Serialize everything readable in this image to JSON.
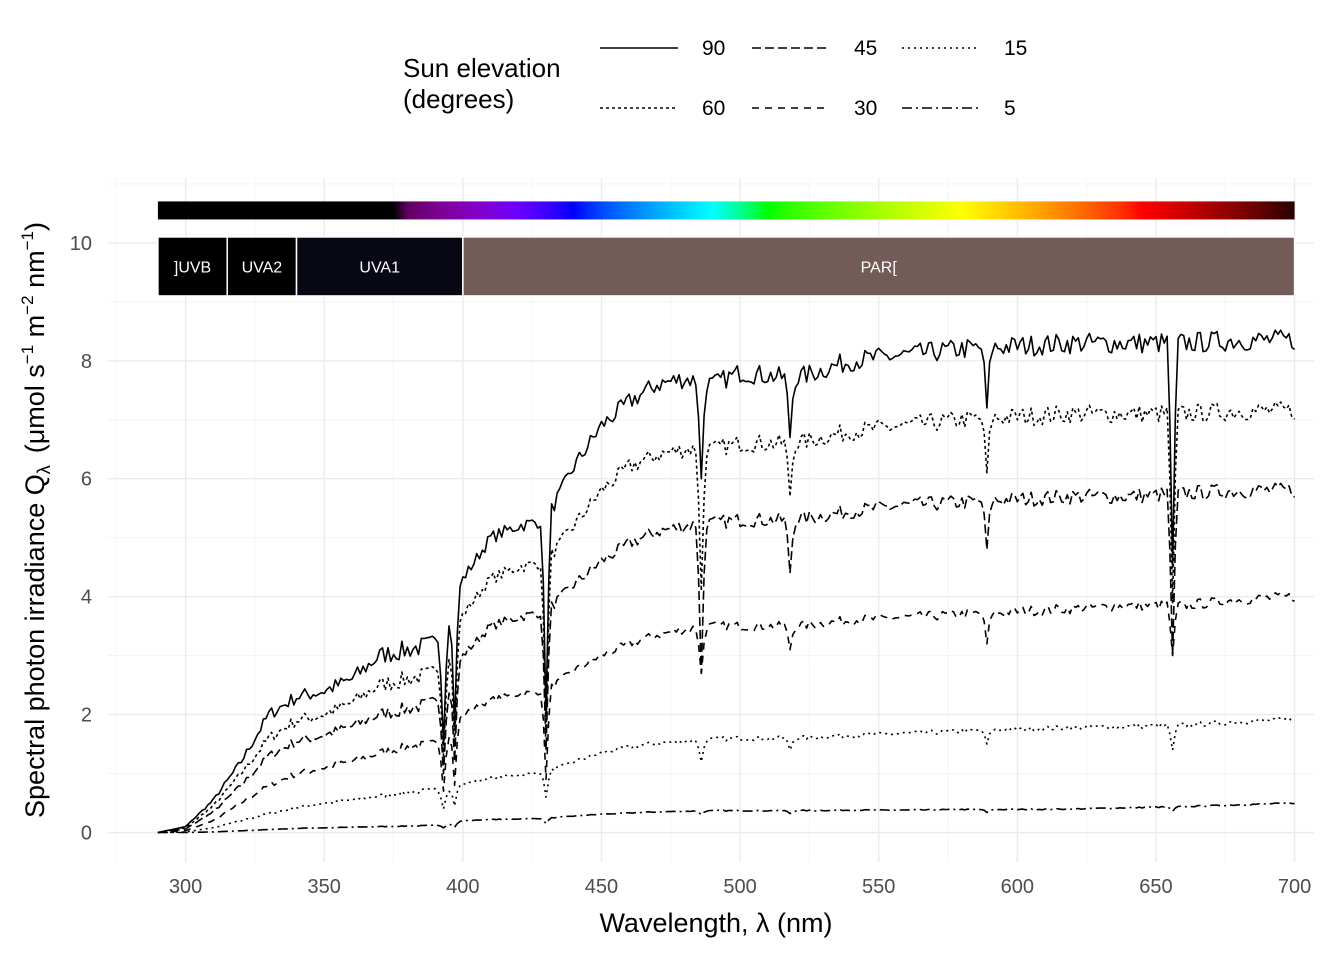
{
  "chart_data": {
    "type": "line",
    "xlabel": "Wavelength, λ (nm)",
    "ylabel": "Spectral photon irradiance Q",
    "ylabel_sub": "λ",
    "ylabel_units_prefix": "(μmol s",
    "ylabel_units_m": " m",
    "ylabel_units_nm": " nm",
    "ylabel_units_suffix": ")",
    "ylabel_exp1": "−1",
    "ylabel_exp2": "−2",
    "ylabel_exp3": "−1",
    "xlim": [
      272,
      707
    ],
    "ylim": [
      -0.5,
      11.1
    ],
    "x_ticks": [
      300,
      350,
      400,
      450,
      500,
      550,
      600,
      650,
      700
    ],
    "y_ticks": [
      0,
      2,
      4,
      6,
      8,
      10
    ],
    "grid": true,
    "legend": {
      "title_line1": "Sun elevation",
      "title_line2": "(degrees)",
      "position": "top",
      "entries": [
        "90",
        "45",
        "15",
        "60",
        "30",
        "5"
      ]
    },
    "wavebands": [
      {
        "label": "]UVB",
        "from": 290,
        "to": 315,
        "color": "#000000"
      },
      {
        "label": "UVA2",
        "from": 315,
        "to": 340,
        "color": "#000000"
      },
      {
        "label": "UVA1",
        "from": 340,
        "to": 400,
        "color": "#080814"
      },
      {
        "label": "PAR[",
        "from": 400,
        "to": 700,
        "color": "#735B57"
      }
    ],
    "color_bar": {
      "from": 290,
      "to": 700
    },
    "series": [
      {
        "name": "90",
        "dash": "none",
        "points": [
          [
            290,
            0
          ],
          [
            300,
            0.1
          ],
          [
            310,
            0.55
          ],
          [
            320,
            1.2
          ],
          [
            330,
            2.0
          ],
          [
            340,
            2.3
          ],
          [
            350,
            2.4
          ],
          [
            360,
            2.6
          ],
          [
            370,
            3.0
          ],
          [
            380,
            3.1
          ],
          [
            390,
            3.2
          ],
          [
            395,
            3.7
          ],
          [
            400,
            4.3
          ],
          [
            410,
            5.0
          ],
          [
            420,
            5.2
          ],
          [
            430,
            5.3
          ],
          [
            440,
            6.2
          ],
          [
            450,
            6.9
          ],
          [
            460,
            7.3
          ],
          [
            470,
            7.6
          ],
          [
            480,
            7.7
          ],
          [
            490,
            7.6
          ],
          [
            500,
            7.8
          ],
          [
            520,
            7.7
          ],
          [
            540,
            8.0
          ],
          [
            560,
            8.1
          ],
          [
            580,
            8.2
          ],
          [
            600,
            8.25
          ],
          [
            620,
            8.3
          ],
          [
            640,
            8.3
          ],
          [
            660,
            8.3
          ],
          [
            680,
            8.35
          ],
          [
            700,
            8.35
          ]
        ],
        "dips": [
          [
            393,
            1.5
          ],
          [
            397,
            1.8
          ],
          [
            430,
            2.0
          ],
          [
            486,
            6.0
          ],
          [
            518,
            6.7
          ],
          [
            589,
            7.2
          ],
          [
            656,
            4.5
          ]
        ]
      },
      {
        "name": "60",
        "dash": "3 3",
        "points": [
          [
            290,
            0
          ],
          [
            300,
            0.08
          ],
          [
            310,
            0.45
          ],
          [
            320,
            1.0
          ],
          [
            330,
            1.6
          ],
          [
            340,
            1.9
          ],
          [
            350,
            2.0
          ],
          [
            360,
            2.2
          ],
          [
            370,
            2.5
          ],
          [
            380,
            2.6
          ],
          [
            390,
            2.7
          ],
          [
            395,
            3.1
          ],
          [
            400,
            3.7
          ],
          [
            410,
            4.3
          ],
          [
            420,
            4.5
          ],
          [
            430,
            4.6
          ],
          [
            440,
            5.2
          ],
          [
            450,
            5.8
          ],
          [
            460,
            6.2
          ],
          [
            470,
            6.4
          ],
          [
            480,
            6.5
          ],
          [
            490,
            6.5
          ],
          [
            500,
            6.6
          ],
          [
            520,
            6.6
          ],
          [
            540,
            6.8
          ],
          [
            560,
            6.9
          ],
          [
            580,
            7.0
          ],
          [
            600,
            7.05
          ],
          [
            620,
            7.1
          ],
          [
            640,
            7.1
          ],
          [
            660,
            7.1
          ],
          [
            680,
            7.15
          ],
          [
            700,
            7.15
          ]
        ],
        "dips": [
          [
            393,
            1.3
          ],
          [
            397,
            1.5
          ],
          [
            430,
            1.7
          ],
          [
            486,
            4.1
          ],
          [
            518,
            5.7
          ],
          [
            589,
            6.1
          ],
          [
            656,
            3.9
          ]
        ]
      },
      {
        "name": "45",
        "dash": "9 4",
        "points": [
          [
            290,
            0
          ],
          [
            300,
            0.06
          ],
          [
            310,
            0.35
          ],
          [
            320,
            0.8
          ],
          [
            330,
            1.3
          ],
          [
            340,
            1.55
          ],
          [
            350,
            1.65
          ],
          [
            360,
            1.8
          ],
          [
            370,
            2.0
          ],
          [
            380,
            2.1
          ],
          [
            390,
            2.2
          ],
          [
            395,
            2.5
          ],
          [
            400,
            3.0
          ],
          [
            410,
            3.5
          ],
          [
            420,
            3.65
          ],
          [
            430,
            3.75
          ],
          [
            440,
            4.2
          ],
          [
            450,
            4.6
          ],
          [
            460,
            4.9
          ],
          [
            470,
            5.1
          ],
          [
            480,
            5.2
          ],
          [
            490,
            5.25
          ],
          [
            500,
            5.3
          ],
          [
            520,
            5.3
          ],
          [
            540,
            5.45
          ],
          [
            560,
            5.55
          ],
          [
            580,
            5.6
          ],
          [
            600,
            5.65
          ],
          [
            620,
            5.7
          ],
          [
            640,
            5.7
          ],
          [
            660,
            5.75
          ],
          [
            680,
            5.8
          ],
          [
            700,
            5.8
          ]
        ],
        "dips": [
          [
            393,
            1.0
          ],
          [
            397,
            1.2
          ],
          [
            430,
            1.4
          ],
          [
            486,
            2.7
          ],
          [
            518,
            4.4
          ],
          [
            589,
            4.8
          ],
          [
            656,
            3.0
          ]
        ]
      },
      {
        "name": "30",
        "dash": "7 6",
        "points": [
          [
            290,
            0
          ],
          [
            300,
            0.03
          ],
          [
            310,
            0.2
          ],
          [
            320,
            0.5
          ],
          [
            330,
            0.8
          ],
          [
            340,
            1.0
          ],
          [
            350,
            1.1
          ],
          [
            360,
            1.2
          ],
          [
            370,
            1.35
          ],
          [
            380,
            1.45
          ],
          [
            390,
            1.5
          ],
          [
            395,
            1.7
          ],
          [
            400,
            2.0
          ],
          [
            410,
            2.25
          ],
          [
            420,
            2.35
          ],
          [
            430,
            2.4
          ],
          [
            440,
            2.75
          ],
          [
            450,
            3.0
          ],
          [
            460,
            3.2
          ],
          [
            470,
            3.35
          ],
          [
            480,
            3.45
          ],
          [
            490,
            3.5
          ],
          [
            500,
            3.5
          ],
          [
            520,
            3.5
          ],
          [
            540,
            3.6
          ],
          [
            560,
            3.65
          ],
          [
            580,
            3.7
          ],
          [
            600,
            3.75
          ],
          [
            620,
            3.8
          ],
          [
            640,
            3.85
          ],
          [
            660,
            3.85
          ],
          [
            680,
            3.95
          ],
          [
            700,
            4.0
          ]
        ],
        "dips": [
          [
            393,
            0.7
          ],
          [
            397,
            0.8
          ],
          [
            430,
            0.9
          ],
          [
            486,
            2.7
          ],
          [
            518,
            3.1
          ],
          [
            589,
            3.2
          ],
          [
            656,
            3.0
          ]
        ]
      },
      {
        "name": "15",
        "dash": "2 4",
        "points": [
          [
            290,
            0
          ],
          [
            300,
            0.01
          ],
          [
            310,
            0.08
          ],
          [
            320,
            0.2
          ],
          [
            330,
            0.32
          ],
          [
            340,
            0.42
          ],
          [
            350,
            0.5
          ],
          [
            360,
            0.55
          ],
          [
            370,
            0.62
          ],
          [
            380,
            0.68
          ],
          [
            390,
            0.72
          ],
          [
            395,
            0.74
          ],
          [
            400,
            0.82
          ],
          [
            410,
            0.93
          ],
          [
            420,
            0.98
          ],
          [
            430,
            1.02
          ],
          [
            440,
            1.2
          ],
          [
            450,
            1.35
          ],
          [
            460,
            1.45
          ],
          [
            470,
            1.52
          ],
          [
            480,
            1.55
          ],
          [
            490,
            1.58
          ],
          [
            500,
            1.6
          ],
          [
            520,
            1.6
          ],
          [
            540,
            1.65
          ],
          [
            560,
            1.68
          ],
          [
            580,
            1.72
          ],
          [
            600,
            1.75
          ],
          [
            620,
            1.78
          ],
          [
            640,
            1.8
          ],
          [
            660,
            1.82
          ],
          [
            680,
            1.88
          ],
          [
            700,
            1.92
          ]
        ],
        "dips": [
          [
            393,
            0.4
          ],
          [
            397,
            0.45
          ],
          [
            430,
            0.6
          ],
          [
            486,
            1.2
          ],
          [
            518,
            1.4
          ],
          [
            589,
            1.5
          ],
          [
            656,
            1.4
          ]
        ]
      },
      {
        "name": "5",
        "dash": "10 4 2 4",
        "points": [
          [
            290,
            0
          ],
          [
            300,
            0.0
          ],
          [
            310,
            0.01
          ],
          [
            320,
            0.03
          ],
          [
            330,
            0.05
          ],
          [
            340,
            0.07
          ],
          [
            350,
            0.08
          ],
          [
            360,
            0.09
          ],
          [
            370,
            0.1
          ],
          [
            380,
            0.11
          ],
          [
            390,
            0.12
          ],
          [
            395,
            0.14
          ],
          [
            400,
            0.2
          ],
          [
            410,
            0.22
          ],
          [
            420,
            0.23
          ],
          [
            430,
            0.24
          ],
          [
            440,
            0.28
          ],
          [
            450,
            0.31
          ],
          [
            460,
            0.33
          ],
          [
            470,
            0.35
          ],
          [
            480,
            0.36
          ],
          [
            490,
            0.37
          ],
          [
            500,
            0.37
          ],
          [
            520,
            0.37
          ],
          [
            540,
            0.38
          ],
          [
            560,
            0.38
          ],
          [
            580,
            0.39
          ],
          [
            600,
            0.39
          ],
          [
            620,
            0.4
          ],
          [
            640,
            0.42
          ],
          [
            660,
            0.44
          ],
          [
            680,
            0.47
          ],
          [
            700,
            0.5
          ]
        ],
        "dips": [
          [
            393,
            0.08
          ],
          [
            397,
            0.09
          ],
          [
            430,
            0.15
          ],
          [
            486,
            0.3
          ],
          [
            518,
            0.32
          ],
          [
            589,
            0.34
          ],
          [
            656,
            0.36
          ]
        ]
      }
    ]
  }
}
